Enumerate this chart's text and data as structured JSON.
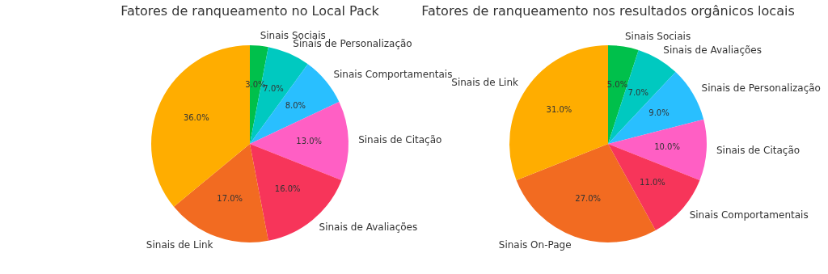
{
  "chart_data": [
    {
      "type": "pie",
      "title": "Fatores de ranqueamento no Local Pack",
      "categories": [
        "Sinais Sociais",
        "Sinais de Personalização",
        "Sinais Comportamentais",
        "Sinais de Citação",
        "Sinais de Avaliações",
        "Sinais de Link",
        null
      ],
      "values": [
        3,
        7,
        8,
        13,
        16,
        17,
        36
      ],
      "value_labels": [
        "3.0%",
        "7.0%",
        "8.0%",
        "13.0%",
        "16.0%",
        "17.0%",
        "36.0%"
      ],
      "colors": [
        "#00c04b",
        "#00c9c0",
        "#29bfff",
        "#ff5fc4",
        "#f7355a",
        "#f26b21",
        "#ffad00"
      ],
      "legend": false
    },
    {
      "type": "pie",
      "title": "Fatores de ranqueamento nos resultados orgânicos locais",
      "categories": [
        "Sinais Sociais",
        "Sinais de Avaliações",
        "Sinais de Personalização",
        "Sinais de Citação",
        "Sinais Comportamentais",
        "Sinais On-Page",
        "Sinais de Link"
      ],
      "values": [
        5,
        7,
        9,
        10,
        11,
        27,
        31
      ],
      "value_labels": [
        "5.0%",
        "7.0%",
        "9.0%",
        "10.0%",
        "11.0%",
        "27.0%",
        "31.0%"
      ],
      "colors": [
        "#00c04b",
        "#00c9c0",
        "#29bfff",
        "#ff5fc4",
        "#f7355a",
        "#f26b21",
        "#ffad00"
      ],
      "legend": false
    }
  ]
}
